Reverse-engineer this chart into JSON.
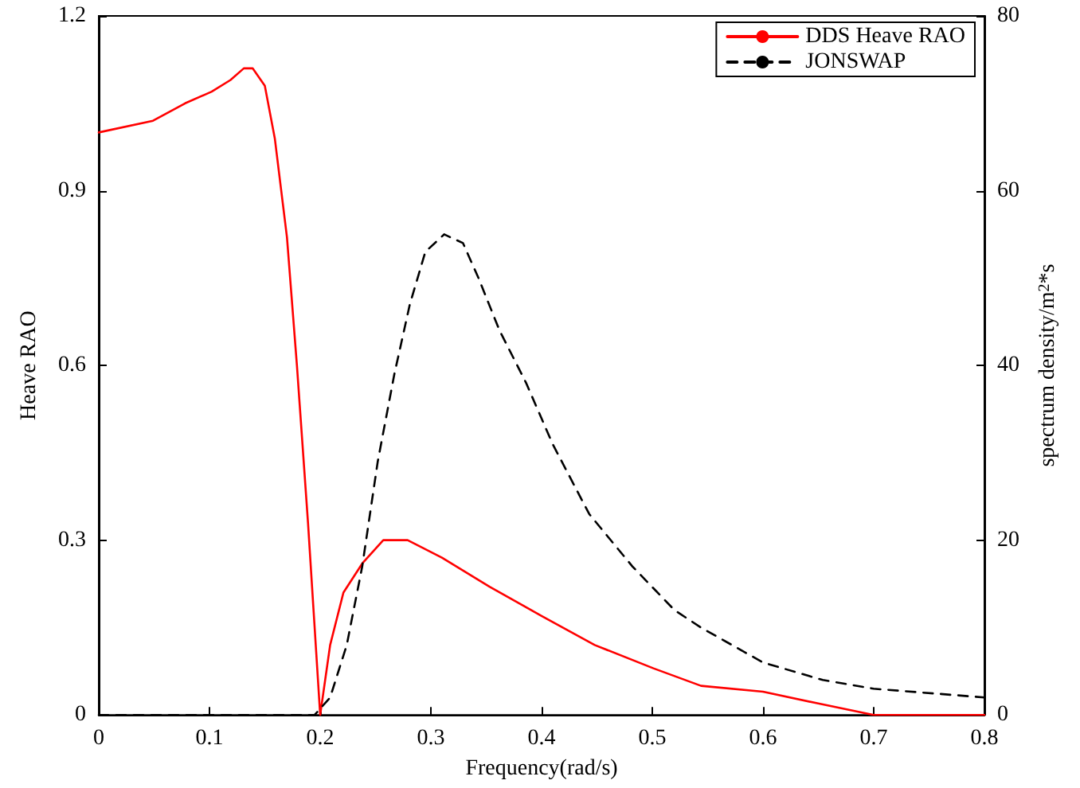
{
  "chart_data": {
    "type": "line",
    "xlabel": "Frequency(rad/s)",
    "ylabel": "Heave RAO",
    "y2label": "spectrum density/m$^{2}$*s",
    "xlim": [
      0,
      0.8
    ],
    "xticks": [
      0,
      0.1,
      0.2,
      0.3,
      0.4,
      0.5,
      0.6,
      0.7,
      0.8
    ],
    "ylim": [
      0,
      1.2
    ],
    "yticks": [
      0,
      0.3,
      0.6,
      0.9,
      1.2
    ],
    "y2lim": [
      0,
      80
    ],
    "y2ticks": [
      0,
      20,
      40,
      60,
      80
    ],
    "grid": false,
    "legend": "top right",
    "marker": "none",
    "series": [
      {
        "name": "DDS Heave RAO",
        "color": "#ff0000",
        "line_style": "solid",
        "x": [
          0,
          0.049,
          0.078,
          0.102,
          0.119,
          0.131,
          0.139,
          0.15,
          0.159,
          0.17,
          0.179,
          0.189,
          0.2,
          0.209,
          0.221,
          0.238,
          0.257,
          0.279,
          0.31,
          0.353,
          0.4,
          0.448,
          0.501,
          0.544,
          0.6,
          0.649,
          0.7,
          0.8
        ],
        "values": [
          1.0,
          1.02,
          1.05,
          1.07,
          1.09,
          1.11,
          1.11,
          1.08,
          0.99,
          0.82,
          0.6,
          0.33,
          0,
          0.12,
          0.21,
          0.26,
          0.3,
          0.3,
          0.27,
          0.22,
          0.17,
          0.12,
          0.08,
          0.05,
          0.04,
          0.02,
          0,
          0
        ]
      },
      {
        "name": "JONSWAP",
        "color": "#000000",
        "line_style": "dashed",
        "axis": "y2",
        "x": [
          0,
          0.1,
          0.195,
          0.209,
          0.224,
          0.238,
          0.252,
          0.267,
          0.281,
          0.295,
          0.312,
          0.329,
          0.343,
          0.362,
          0.386,
          0.41,
          0.443,
          0.482,
          0.52,
          0.544,
          0.6,
          0.654,
          0.7,
          0.8
        ],
        "values": [
          0,
          0,
          0,
          2,
          8,
          17,
          29,
          39,
          47,
          53,
          55,
          54,
          50,
          44,
          38,
          31,
          23,
          17,
          12,
          10,
          6,
          4,
          3,
          2
        ]
      }
    ]
  }
}
